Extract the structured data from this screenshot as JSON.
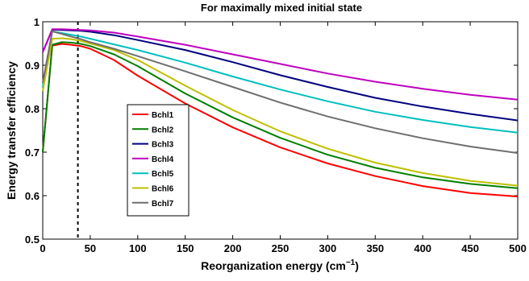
{
  "chart_data": {
    "type": "line",
    "title": "For maximally mixed initial state",
    "xlabel": "Reorganization energy (cm",
    "xlabel_unit_sup": "−1",
    "xlabel_close": ")",
    "ylabel": "Energy transfer efficiency",
    "xlim": [
      0,
      500
    ],
    "ylim": [
      0.5,
      1.0
    ],
    "x_ticks": [
      "0",
      "50",
      "100",
      "150",
      "200",
      "250",
      "300",
      "350",
      "400",
      "450",
      "500"
    ],
    "y_ticks": [
      "0.5",
      "0.6",
      "0.7",
      "0.8",
      "0.9",
      "1"
    ],
    "grid": false,
    "legend_position": "left",
    "vertical_reference_line_x": 37,
    "x": [
      0,
      10,
      20,
      30,
      40,
      50,
      75,
      100,
      150,
      200,
      250,
      300,
      350,
      400,
      450,
      500
    ],
    "series": [
      {
        "name": "Bchl1",
        "color": "#ff0000",
        "values": [
          0.7,
          0.945,
          0.949,
          0.947,
          0.944,
          0.938,
          0.912,
          0.876,
          0.812,
          0.757,
          0.711,
          0.674,
          0.645,
          0.622,
          0.606,
          0.598
        ]
      },
      {
        "name": "Bchl2",
        "color": "#007f00",
        "values": [
          0.7,
          0.947,
          0.953,
          0.952,
          0.949,
          0.944,
          0.925,
          0.898,
          0.835,
          0.78,
          0.733,
          0.694,
          0.664,
          0.642,
          0.627,
          0.617
        ]
      },
      {
        "name": "Bchl3",
        "color": "#00007f",
        "values": [
          0.93,
          0.982,
          0.981,
          0.98,
          0.979,
          0.977,
          0.969,
          0.958,
          0.935,
          0.907,
          0.877,
          0.85,
          0.825,
          0.805,
          0.788,
          0.773
        ]
      },
      {
        "name": "Bchl4",
        "color": "#bf00bf",
        "values": [
          0.93,
          0.983,
          0.983,
          0.982,
          0.981,
          0.98,
          0.975,
          0.966,
          0.947,
          0.925,
          0.903,
          0.881,
          0.862,
          0.846,
          0.832,
          0.821
        ]
      },
      {
        "name": "Bchl5",
        "color": "#00bfbf",
        "values": [
          0.85,
          0.978,
          0.974,
          0.97,
          0.966,
          0.961,
          0.948,
          0.935,
          0.906,
          0.874,
          0.844,
          0.817,
          0.793,
          0.774,
          0.758,
          0.745
        ]
      },
      {
        "name": "Bchl6",
        "color": "#bfbf00",
        "values": [
          0.84,
          0.961,
          0.962,
          0.96,
          0.956,
          0.95,
          0.935,
          0.912,
          0.853,
          0.797,
          0.748,
          0.708,
          0.676,
          0.652,
          0.634,
          0.623
        ]
      },
      {
        "name": "Bchl7",
        "color": "#6e6e6e",
        "values": [
          0.86,
          0.978,
          0.972,
          0.966,
          0.96,
          0.953,
          0.938,
          0.921,
          0.886,
          0.85,
          0.814,
          0.782,
          0.755,
          0.732,
          0.713,
          0.698
        ]
      }
    ]
  }
}
